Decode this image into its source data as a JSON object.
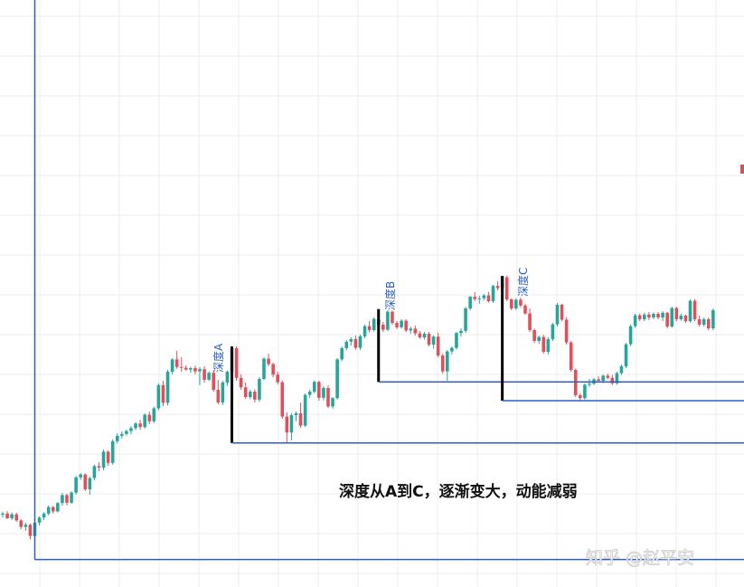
{
  "chart_data": {
    "type": "candlestick",
    "colors": {
      "up": "#26a69a",
      "down": "#e0505a",
      "structure_line": "#2b5fc7",
      "depth_bar": "#000000",
      "grid": "#eeeeee"
    },
    "annotation_main": "深度从A到C，逐渐变大，动能减弱",
    "depth_labels": [
      "深度A",
      "深度B",
      "深度C"
    ],
    "watermark": "知乎 @赵平安",
    "price_range": [
      0,
      100
    ],
    "depths": [
      {
        "label": "深度A",
        "top": 60.5,
        "bottom": 33.8
      },
      {
        "label": "深度B",
        "top": 70.8,
        "bottom": 50.7
      },
      {
        "label": "深度C",
        "top": 80.0,
        "bottom": 45.5
      }
    ],
    "base_level": 1.6,
    "candles": [
      [
        14.0,
        14.8,
        13.2,
        14.3
      ],
      [
        14.3,
        15.0,
        12.8,
        13.0
      ],
      [
        13.0,
        14.6,
        12.5,
        14.1
      ],
      [
        14.1,
        14.5,
        12.0,
        12.4
      ],
      [
        12.4,
        12.8,
        10.0,
        10.6
      ],
      [
        10.6,
        11.8,
        9.5,
        11.2
      ],
      [
        11.2,
        11.6,
        7.2,
        8.1
      ],
      [
        8.1,
        12.2,
        1.6,
        11.8
      ],
      [
        11.8,
        13.5,
        11.0,
        13.2
      ],
      [
        13.2,
        14.7,
        12.5,
        14.3
      ],
      [
        14.3,
        16.5,
        13.8,
        16.1
      ],
      [
        16.1,
        16.4,
        14.3,
        14.9
      ],
      [
        14.9,
        17.5,
        14.6,
        17.2
      ],
      [
        17.2,
        20.0,
        16.5,
        19.4
      ],
      [
        19.4,
        19.8,
        16.6,
        17.3
      ],
      [
        17.3,
        20.5,
        17.0,
        20.1
      ],
      [
        20.1,
        24.7,
        19.5,
        24.3
      ],
      [
        24.3,
        25.5,
        23.6,
        25.1
      ],
      [
        25.1,
        25.4,
        20.5,
        21.0
      ],
      [
        21.0,
        24.5,
        19.5,
        24.1
      ],
      [
        24.1,
        27.8,
        23.5,
        27.4
      ],
      [
        27.4,
        28.5,
        26.0,
        27.0
      ],
      [
        27.0,
        32.0,
        26.3,
        31.4
      ],
      [
        31.4,
        31.7,
        27.5,
        28.3
      ],
      [
        28.3,
        34.8,
        27.8,
        34.3
      ],
      [
        34.3,
        36.5,
        33.6,
        35.8
      ],
      [
        35.8,
        37.0,
        35.0,
        36.3
      ],
      [
        36.3,
        37.5,
        35.8,
        37.1
      ],
      [
        37.1,
        38.5,
        36.2,
        37.9
      ],
      [
        37.9,
        39.6,
        37.4,
        39.2
      ],
      [
        39.2,
        40.2,
        37.5,
        38.2
      ],
      [
        38.2,
        42.0,
        37.8,
        41.6
      ],
      [
        41.6,
        42.5,
        39.0,
        39.8
      ],
      [
        39.8,
        43.8,
        39.3,
        43.4
      ],
      [
        43.4,
        50.3,
        42.8,
        49.8
      ],
      [
        49.8,
        51.0,
        44.0,
        44.9
      ],
      [
        44.9,
        54.0,
        44.2,
        53.5
      ],
      [
        53.5,
        57.2,
        52.8,
        56.9
      ],
      [
        56.9,
        59.3,
        54.3,
        54.8
      ],
      [
        54.8,
        57.5,
        53.5,
        54.6
      ],
      [
        54.6,
        55.3,
        53.8,
        54.1
      ],
      [
        54.1,
        54.9,
        53.2,
        54.5
      ],
      [
        54.5,
        55.2,
        52.8,
        53.6
      ],
      [
        53.6,
        54.8,
        49.8,
        54.2
      ],
      [
        54.2,
        55.0,
        50.5,
        51.3
      ],
      [
        51.3,
        53.6,
        51.0,
        53.2
      ],
      [
        53.2,
        53.8,
        48.0,
        48.5
      ],
      [
        48.5,
        51.2,
        44.5,
        45.0
      ],
      [
        45.0,
        51.0,
        44.3,
        50.5
      ],
      [
        50.5,
        53.8,
        49.6,
        53.5
      ],
      [
        53.5,
        60.5,
        50.6,
        60.0
      ],
      [
        60.0,
        60.5,
        51.0,
        51.8
      ],
      [
        51.8,
        52.8,
        48.5,
        49.2
      ],
      [
        49.2,
        50.5,
        46.0,
        46.5
      ],
      [
        46.5,
        48.5,
        45.9,
        48.0
      ],
      [
        48.0,
        48.6,
        45.0,
        45.8
      ],
      [
        45.8,
        52.0,
        45.2,
        51.5
      ],
      [
        51.5,
        57.5,
        51.2,
        57.1
      ],
      [
        57.1,
        58.5,
        55.0,
        55.6
      ],
      [
        55.6,
        56.0,
        52.0,
        52.7
      ],
      [
        52.7,
        53.5,
        50.0,
        50.6
      ],
      [
        50.6,
        51.0,
        40.5,
        41.1
      ],
      [
        41.1,
        42.3,
        33.8,
        36.7
      ],
      [
        36.7,
        42.0,
        34.5,
        41.5
      ],
      [
        41.5,
        42.5,
        39.8,
        42.0
      ],
      [
        42.0,
        45.0,
        38.0,
        38.6
      ],
      [
        38.6,
        47.5,
        38.2,
        47.1
      ],
      [
        47.1,
        48.5,
        46.3,
        48.0
      ],
      [
        48.0,
        51.1,
        47.5,
        50.7
      ],
      [
        50.7,
        51.0,
        45.5,
        46.3
      ],
      [
        46.3,
        49.5,
        45.6,
        49.0
      ],
      [
        49.0,
        49.7,
        43.5,
        43.9
      ],
      [
        43.9,
        46.5,
        43.3,
        46.2
      ],
      [
        46.2,
        57.3,
        45.8,
        56.9
      ],
      [
        56.9,
        60.5,
        56.4,
        60.0
      ],
      [
        60.0,
        62.3,
        59.4,
        61.8
      ],
      [
        61.8,
        63.0,
        60.7,
        62.5
      ],
      [
        62.5,
        63.5,
        59.6,
        60.1
      ],
      [
        60.1,
        63.8,
        59.5,
        63.3
      ],
      [
        63.3,
        66.5,
        62.8,
        66.1
      ],
      [
        66.1,
        67.5,
        64.4,
        65.0
      ],
      [
        65.0,
        68.5,
        64.6,
        68.1
      ],
      [
        68.1,
        70.8,
        66.0,
        66.5
      ],
      [
        66.5,
        67.3,
        64.5,
        65.1
      ],
      [
        65.1,
        70.5,
        64.8,
        70.1
      ],
      [
        70.1,
        70.4,
        66.5,
        67.0
      ],
      [
        67.0,
        67.5,
        65.3,
        65.8
      ],
      [
        65.8,
        68.0,
        65.4,
        67.6
      ],
      [
        67.6,
        68.0,
        64.5,
        64.9
      ],
      [
        64.9,
        66.0,
        64.0,
        65.4
      ],
      [
        65.4,
        66.3,
        63.5,
        64.1
      ],
      [
        64.1,
        64.8,
        62.6,
        63.0
      ],
      [
        63.0,
        64.5,
        62.4,
        64.0
      ],
      [
        64.0,
        64.5,
        60.5,
        61.0
      ],
      [
        61.0,
        63.6,
        59.8,
        63.2
      ],
      [
        63.2,
        64.3,
        57.5,
        58.0
      ],
      [
        58.0,
        58.5,
        53.0,
        53.6
      ],
      [
        53.6,
        59.5,
        51.0,
        59.1
      ],
      [
        59.1,
        60.5,
        58.3,
        60.1
      ],
      [
        60.1,
        64.5,
        59.6,
        64.2
      ],
      [
        64.2,
        65.5,
        63.2,
        64.8
      ],
      [
        64.8,
        71.5,
        64.2,
        71.0
      ],
      [
        71.0,
        74.5,
        70.5,
        74.2
      ],
      [
        74.2,
        75.5,
        73.0,
        73.6
      ],
      [
        73.6,
        74.5,
        72.3,
        73.8
      ],
      [
        73.8,
        75.0,
        73.2,
        74.6
      ],
      [
        74.6,
        75.6,
        72.6,
        73.0
      ],
      [
        73.0,
        77.5,
        72.5,
        77.2
      ],
      [
        77.2,
        78.5,
        76.0,
        76.6
      ],
      [
        76.6,
        80.0,
        76.0,
        79.6
      ],
      [
        79.6,
        80.0,
        73.0,
        73.5
      ],
      [
        73.5,
        73.8,
        70.5,
        71.0
      ],
      [
        71.0,
        73.8,
        70.6,
        73.4
      ],
      [
        73.4,
        74.0,
        71.3,
        71.8
      ],
      [
        71.8,
        72.3,
        69.2,
        69.6
      ],
      [
        69.6,
        71.0,
        64.5,
        65.0
      ],
      [
        65.0,
        65.4,
        61.5,
        62.0
      ],
      [
        62.0,
        63.5,
        61.2,
        63.1
      ],
      [
        63.1,
        63.7,
        58.5,
        59.0
      ],
      [
        59.0,
        63.0,
        58.3,
        62.5
      ],
      [
        62.5,
        67.0,
        62.0,
        66.6
      ],
      [
        66.6,
        72.5,
        66.0,
        72.0
      ],
      [
        72.0,
        72.3,
        67.5,
        67.9
      ],
      [
        67.9,
        68.6,
        61.0,
        61.6
      ],
      [
        61.6,
        62.0,
        53.5,
        54.0
      ],
      [
        54.0,
        54.4,
        46.5,
        47.0
      ],
      [
        47.0,
        47.5,
        45.5,
        46.2
      ],
      [
        46.2,
        50.3,
        45.8,
        49.9
      ],
      [
        49.9,
        51.5,
        49.3,
        50.2
      ],
      [
        50.2,
        51.8,
        49.8,
        51.4
      ],
      [
        51.4,
        52.2,
        50.5,
        51.0
      ],
      [
        51.0,
        52.8,
        50.3,
        52.4
      ],
      [
        52.4,
        53.0,
        51.4,
        51.8
      ],
      [
        51.8,
        52.6,
        49.8,
        50.3
      ],
      [
        50.3,
        53.5,
        49.9,
        53.1
      ],
      [
        53.1,
        55.5,
        52.6,
        55.0
      ],
      [
        55.0,
        61.5,
        54.5,
        61.1
      ],
      [
        61.1,
        66.5,
        60.6,
        66.1
      ],
      [
        66.1,
        69.5,
        65.6,
        69.1
      ],
      [
        69.1,
        69.6,
        67.5,
        68.0
      ],
      [
        68.0,
        69.8,
        67.5,
        69.3
      ],
      [
        69.3,
        70.0,
        67.8,
        68.5
      ],
      [
        68.5,
        69.9,
        68.0,
        69.5
      ],
      [
        69.5,
        70.0,
        68.0,
        68.5
      ],
      [
        68.5,
        70.2,
        67.5,
        69.8
      ],
      [
        69.8,
        70.0,
        65.5,
        66.0
      ],
      [
        66.0,
        71.5,
        65.6,
        71.1
      ],
      [
        71.1,
        71.5,
        67.5,
        68.0
      ],
      [
        68.0,
        69.5,
        67.6,
        69.0
      ],
      [
        69.0,
        69.3,
        67.0,
        67.5
      ],
      [
        67.5,
        73.5,
        67.1,
        73.1
      ],
      [
        73.1,
        73.6,
        67.5,
        68.0
      ],
      [
        68.0,
        69.0,
        66.0,
        66.5
      ],
      [
        66.5,
        68.5,
        66.0,
        68.0
      ],
      [
        68.0,
        68.5,
        65.0,
        65.5
      ],
      [
        65.5,
        71.0,
        65.0,
        70.5
      ]
    ]
  }
}
